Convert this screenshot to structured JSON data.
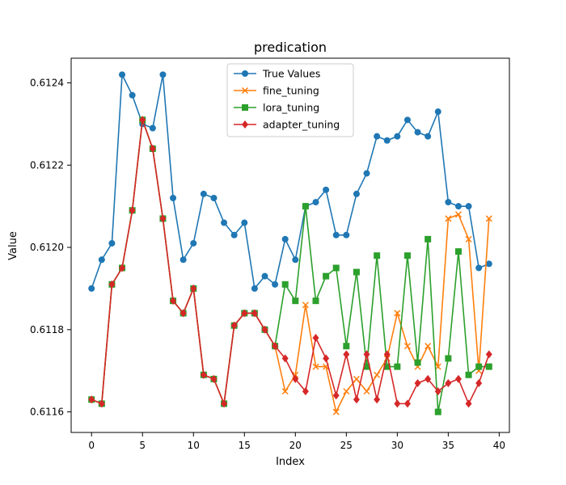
{
  "chart_data": {
    "type": "line",
    "title": "predication",
    "xlabel": "Index",
    "ylabel": "Value",
    "xlim": [
      -2,
      41
    ],
    "ylim": [
      0.61155,
      0.61246
    ],
    "xticks": [
      0,
      5,
      10,
      15,
      20,
      25,
      30,
      35,
      40
    ],
    "yticks": [
      0.6116,
      0.6118,
      0.612,
      0.6122,
      0.6124
    ],
    "ytick_labels": [
      "0.6116",
      "0.6118",
      "0.6120",
      "0.6122",
      "0.6124"
    ],
    "grid": false,
    "legend_position": "top-center",
    "series": [
      {
        "name": "True Values",
        "color": "#1f77b4",
        "marker": "circle",
        "x": [
          0,
          1,
          2,
          3,
          4,
          5,
          6,
          7,
          8,
          9,
          10,
          11,
          12,
          13,
          14,
          15,
          16,
          17,
          18,
          19,
          20,
          21,
          22,
          23,
          24,
          25,
          26,
          27,
          28,
          29,
          30,
          31,
          32,
          33,
          34,
          35,
          36,
          37,
          38,
          39
        ],
        "values": [
          0.6119,
          0.61197,
          0.61201,
          0.61242,
          0.61237,
          0.6123,
          0.61229,
          0.61242,
          0.61212,
          0.61197,
          0.61201,
          0.61213,
          0.61212,
          0.61206,
          0.61203,
          0.61206,
          0.6119,
          0.61193,
          0.61191,
          0.61202,
          0.61197,
          0.6121,
          0.61211,
          0.61214,
          0.61203,
          0.61203,
          0.61213,
          0.61218,
          0.61227,
          0.61226,
          0.61227,
          0.61231,
          0.61228,
          0.61227,
          0.61233,
          0.61211,
          0.6121,
          0.6121,
          0.61195,
          0.61196
        ]
      },
      {
        "name": "fine_tuning",
        "color": "#ff7f0e",
        "marker": "x",
        "x": [
          0,
          1,
          2,
          3,
          4,
          5,
          6,
          7,
          8,
          9,
          10,
          11,
          12,
          13,
          14,
          15,
          16,
          17,
          18,
          19,
          20,
          21,
          22,
          23,
          24,
          25,
          26,
          27,
          28,
          29,
          30,
          31,
          32,
          33,
          34,
          35,
          36,
          37,
          38,
          39
        ],
        "values": [
          0.61163,
          0.61162,
          0.61191,
          0.61195,
          0.61209,
          0.61231,
          0.61224,
          0.61207,
          0.61187,
          0.61184,
          0.6119,
          0.61169,
          0.61168,
          0.61162,
          0.61181,
          0.61184,
          0.61184,
          0.6118,
          0.61176,
          0.61165,
          0.61169,
          0.61186,
          0.61171,
          0.61171,
          0.6116,
          0.61165,
          0.61168,
          0.61165,
          0.61169,
          0.61173,
          0.61184,
          0.61176,
          0.61171,
          0.61176,
          0.61171,
          0.61207,
          0.61208,
          0.61202,
          0.6117,
          0.61207
        ]
      },
      {
        "name": "lora_tuning",
        "color": "#2ca02c",
        "marker": "square",
        "x": [
          0,
          1,
          2,
          3,
          4,
          5,
          6,
          7,
          8,
          9,
          10,
          11,
          12,
          13,
          14,
          15,
          16,
          17,
          18,
          19,
          20,
          21,
          22,
          23,
          24,
          25,
          26,
          27,
          28,
          29,
          30,
          31,
          32,
          33,
          34,
          35,
          36,
          37,
          38,
          39
        ],
        "values": [
          0.61163,
          0.61162,
          0.61191,
          0.61195,
          0.61209,
          0.61231,
          0.61224,
          0.61207,
          0.61187,
          0.61184,
          0.6119,
          0.61169,
          0.61168,
          0.61162,
          0.61181,
          0.61184,
          0.61184,
          0.6118,
          0.61176,
          0.61191,
          0.61187,
          0.6121,
          0.61187,
          0.61193,
          0.61195,
          0.61176,
          0.61194,
          0.61171,
          0.61198,
          0.61171,
          0.61171,
          0.61198,
          0.61172,
          0.61202,
          0.6116,
          0.61173,
          0.61199,
          0.61169,
          0.61171,
          0.61171
        ]
      },
      {
        "name": "adapter_tuning",
        "color": "#d62728",
        "marker": "diamond",
        "x": [
          0,
          1,
          2,
          3,
          4,
          5,
          6,
          7,
          8,
          9,
          10,
          11,
          12,
          13,
          14,
          15,
          16,
          17,
          18,
          19,
          20,
          21,
          22,
          23,
          24,
          25,
          26,
          27,
          28,
          29,
          30,
          31,
          32,
          33,
          34,
          35,
          36,
          37,
          38,
          39
        ],
        "values": [
          0.61163,
          0.61162,
          0.61191,
          0.61195,
          0.61209,
          0.61231,
          0.61224,
          0.61207,
          0.61187,
          0.61184,
          0.6119,
          0.61169,
          0.61168,
          0.61162,
          0.61181,
          0.61184,
          0.61184,
          0.6118,
          0.61176,
          0.61173,
          0.61168,
          0.61165,
          0.61178,
          0.61173,
          0.61164,
          0.61174,
          0.61163,
          0.61174,
          0.61163,
          0.61174,
          0.61162,
          0.61162,
          0.61167,
          0.61168,
          0.61165,
          0.61167,
          0.61168,
          0.61162,
          0.61167,
          0.61174
        ]
      }
    ]
  }
}
